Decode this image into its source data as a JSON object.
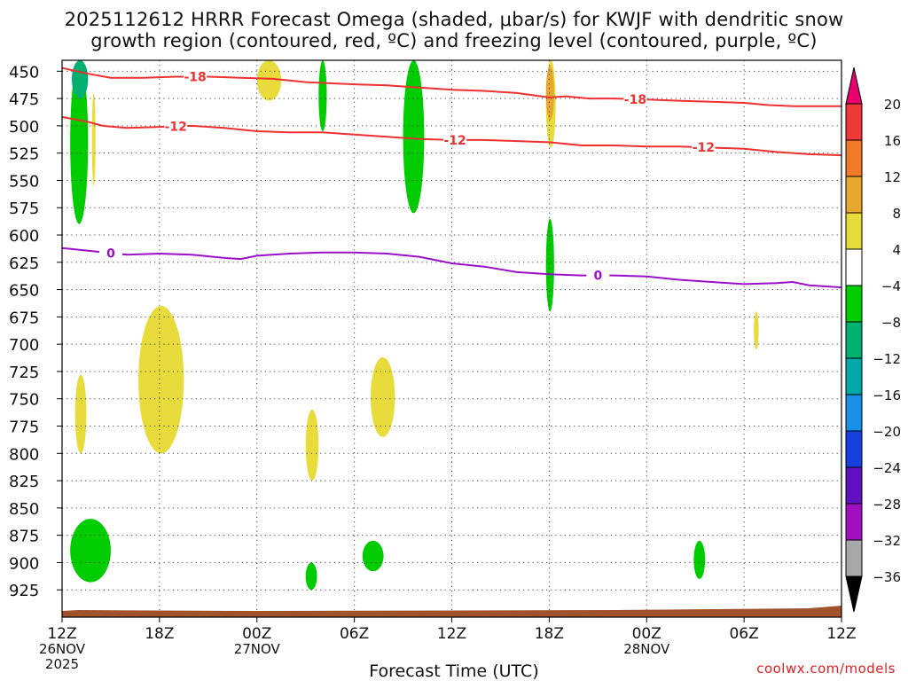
{
  "title_line1": "2025112612 HRRR Forecast Omega (shaded, μbar/s) for KWJF with dendritic snow",
  "title_line2": "growth region (contoured, red, ºC) and freezing level (contoured, purple, ºC)",
  "credit": "coolwx.com/models",
  "chart_data": {
    "type": "time-height cross section",
    "title": "2025112612 HRRR Forecast Omega (shaded, μbar/s) for KWJF with dendritic snow growth region (contoured, red, ºC) and freezing level (contoured, purple, ºC)",
    "xlabel": "Forecast Time (UTC)",
    "ylabel": "",
    "x_range_hours": [
      0,
      48
    ],
    "y_range_hpa": [
      440,
      950
    ],
    "grid": "dotted",
    "x_ticks": [
      {
        "hour": 0,
        "label": "12Z",
        "date": "26NOV",
        "year": "2025"
      },
      {
        "hour": 6,
        "label": "18Z",
        "date": "",
        "year": ""
      },
      {
        "hour": 12,
        "label": "00Z",
        "date": "27NOV",
        "year": ""
      },
      {
        "hour": 18,
        "label": "06Z",
        "date": "",
        "year": ""
      },
      {
        "hour": 24,
        "label": "12Z",
        "date": "",
        "year": ""
      },
      {
        "hour": 30,
        "label": "18Z",
        "date": "",
        "year": ""
      },
      {
        "hour": 36,
        "label": "00Z",
        "date": "28NOV",
        "year": ""
      },
      {
        "hour": 42,
        "label": "06Z",
        "date": "",
        "year": ""
      },
      {
        "hour": 48,
        "label": "12Z",
        "date": "",
        "year": ""
      }
    ],
    "y_ticks": [
      "450",
      "475",
      "500",
      "525",
      "550",
      "575",
      "600",
      "625",
      "650",
      "675",
      "700",
      "725",
      "750",
      "775",
      "800",
      "825",
      "850",
      "875",
      "900",
      "925"
    ],
    "colorbar": {
      "labels": [
        "20",
        "16",
        "12",
        "8",
        "4",
        "−4",
        "−8",
        "−12",
        "−16",
        "−20",
        "−24",
        "−28",
        "−32",
        "−36"
      ],
      "colors": [
        "#e8006e",
        "#f03838",
        "#f07828",
        "#e8a830",
        "#e8dc3c",
        "#ffffff",
        "#00cc00",
        "#00b070",
        "#00a8a8",
        "#1890e8",
        "#1840e0",
        "#6010c0",
        "#a010c0",
        "#a8a8a8",
        "#000000"
      ]
    },
    "contours": [
      {
        "name": "-18",
        "color": "#ee3030",
        "label_positions_hours": [
          8.2,
          35.3
        ],
        "points": [
          [
            0,
            447
          ],
          [
            1.5,
            452
          ],
          [
            3,
            456
          ],
          [
            5,
            456
          ],
          [
            7,
            455
          ],
          [
            9,
            455
          ],
          [
            11,
            456
          ],
          [
            13,
            457
          ],
          [
            15,
            460
          ],
          [
            16.5,
            461
          ],
          [
            18,
            462
          ],
          [
            20,
            463
          ],
          [
            22,
            465
          ],
          [
            24,
            467
          ],
          [
            26,
            468
          ],
          [
            28,
            470
          ],
          [
            29.5,
            473
          ],
          [
            30,
            474
          ],
          [
            31,
            473
          ],
          [
            32.5,
            475
          ],
          [
            34,
            475
          ],
          [
            36,
            476
          ],
          [
            38,
            477
          ],
          [
            40,
            478
          ],
          [
            42,
            479
          ],
          [
            43.5,
            481
          ],
          [
            45,
            482
          ],
          [
            46.5,
            482
          ],
          [
            48,
            482
          ]
        ]
      },
      {
        "name": "-12",
        "color": "#ee3030",
        "label_positions_hours": [
          7.0,
          24.2,
          39.5
        ],
        "points": [
          [
            0,
            492
          ],
          [
            1.5,
            496
          ],
          [
            2.5,
            500
          ],
          [
            4,
            502
          ],
          [
            6,
            501
          ],
          [
            8,
            500
          ],
          [
            10,
            502
          ],
          [
            12,
            505
          ],
          [
            14,
            506
          ],
          [
            16,
            506
          ],
          [
            18,
            508
          ],
          [
            20,
            510
          ],
          [
            22,
            512
          ],
          [
            24,
            513
          ],
          [
            26,
            513
          ],
          [
            28,
            514
          ],
          [
            30,
            515
          ],
          [
            32,
            518
          ],
          [
            34,
            518
          ],
          [
            36,
            519
          ],
          [
            38,
            519
          ],
          [
            40,
            520
          ],
          [
            42,
            521
          ],
          [
            44,
            524
          ],
          [
            46,
            526
          ],
          [
            48,
            527
          ]
        ]
      },
      {
        "name": "0",
        "color": "#9a10c8",
        "label_positions_hours": [
          3.0,
          33.0
        ],
        "points": [
          [
            0,
            612
          ],
          [
            2,
            615
          ],
          [
            4,
            618
          ],
          [
            6,
            617
          ],
          [
            8,
            618
          ],
          [
            10,
            621
          ],
          [
            11,
            622
          ],
          [
            12,
            619
          ],
          [
            14,
            617
          ],
          [
            16,
            616
          ],
          [
            18,
            616
          ],
          [
            20,
            617
          ],
          [
            22,
            620
          ],
          [
            24,
            626
          ],
          [
            26,
            629
          ],
          [
            28,
            634
          ],
          [
            30,
            636
          ],
          [
            32,
            637
          ],
          [
            34,
            637
          ],
          [
            36,
            638
          ],
          [
            38,
            641
          ],
          [
            40,
            643
          ],
          [
            42,
            645
          ],
          [
            44,
            644
          ],
          [
            45,
            643
          ],
          [
            46,
            646
          ],
          [
            48,
            648
          ]
        ]
      }
    ],
    "terrain_color": "#a0522d",
    "shaded_regions": [
      {
        "category": "-4",
        "hours": [
          0.5,
          1.6
        ],
        "hpa": [
          440,
          590
        ]
      },
      {
        "category": "-8",
        "hours": [
          0.6,
          1.6
        ],
        "hpa": [
          440,
          475
        ]
      },
      {
        "category": "4",
        "hours": [
          1.9,
          2.0
        ],
        "hpa": [
          470,
          555
        ]
      },
      {
        "category": "4",
        "hours": [
          12.0,
          13.5
        ],
        "hpa": [
          440,
          477
        ]
      },
      {
        "category": "-4",
        "hours": [
          15.8,
          16.3
        ],
        "hpa": [
          440,
          505
        ]
      },
      {
        "category": "-4",
        "hours": [
          21.0,
          22.3
        ],
        "hpa": [
          440,
          580
        ]
      },
      {
        "category": "4",
        "hours": [
          29.8,
          30.4
        ],
        "hpa": [
          440,
          520
        ]
      },
      {
        "category": "8",
        "hours": [
          29.8,
          30.3
        ],
        "hpa": [
          445,
          495
        ]
      },
      {
        "category": "-4",
        "hours": [
          29.8,
          30.3
        ],
        "hpa": [
          585,
          670
        ]
      },
      {
        "category": "4",
        "hours": [
          42.6,
          42.9
        ],
        "hpa": [
          670,
          705
        ]
      },
      {
        "category": "4",
        "hours": [
          0.8,
          1.5
        ],
        "hpa": [
          728,
          800
        ]
      },
      {
        "category": "4",
        "hours": [
          4.7,
          7.5
        ],
        "hpa": [
          665,
          800
        ]
      },
      {
        "category": "4",
        "hours": [
          15.0,
          15.8
        ],
        "hpa": [
          760,
          825
        ]
      },
      {
        "category": "4",
        "hours": [
          19.0,
          20.5
        ],
        "hpa": [
          712,
          785
        ]
      },
      {
        "category": "-4",
        "hours": [
          0.5,
          3.0
        ],
        "hpa": [
          860,
          918
        ]
      },
      {
        "category": "-4",
        "hours": [
          15.0,
          15.7
        ],
        "hpa": [
          900,
          925
        ]
      },
      {
        "category": "-4",
        "hours": [
          18.5,
          19.8
        ],
        "hpa": [
          880,
          908
        ]
      },
      {
        "category": "-4",
        "hours": [
          38.9,
          39.6
        ],
        "hpa": [
          880,
          915
        ]
      }
    ]
  }
}
